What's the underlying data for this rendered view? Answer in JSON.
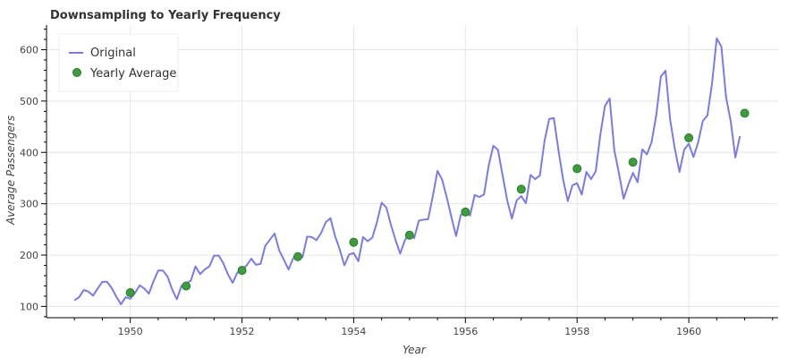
{
  "chart_data": {
    "type": "line",
    "title": "Downsampling to Yearly Frequency",
    "xlabel": "Year",
    "ylabel": "Average Passengers",
    "xlim": [
      1948.5,
      1961.6
    ],
    "ylim": [
      78,
      648
    ],
    "x_ticks": [
      1950,
      1952,
      1954,
      1956,
      1958,
      1960
    ],
    "y_ticks": [
      100,
      200,
      300,
      400,
      500,
      600
    ],
    "grid": true,
    "legend_position": "top-left",
    "series": [
      {
        "name": "Original",
        "style": "line",
        "color": "#7b7be8",
        "x_start": 1949.0,
        "x_step": 0.0833333,
        "values": [
          112,
          118,
          132,
          129,
          121,
          135,
          148,
          148,
          136,
          119,
          104,
          118,
          115,
          126,
          141,
          135,
          125,
          149,
          170,
          170,
          158,
          133,
          114,
          140,
          145,
          150,
          178,
          163,
          172,
          178,
          199,
          199,
          184,
          162,
          146,
          166,
          171,
          180,
          193,
          181,
          183,
          218,
          230,
          242,
          209,
          191,
          172,
          194,
          196,
          196,
          236,
          235,
          229,
          243,
          264,
          272,
          237,
          211,
          180,
          201,
          204,
          188,
          235,
          227,
          234,
          264,
          302,
          293,
          259,
          229,
          203,
          229,
          242,
          233,
          267,
          269,
          270,
          315,
          364,
          347,
          312,
          274,
          237,
          278,
          284,
          277,
          317,
          313,
          318,
          374,
          413,
          405,
          355,
          306,
          271,
          306,
          315,
          301,
          356,
          348,
          355,
          422,
          465,
          467,
          404,
          347,
          305,
          336,
          340,
          318,
          362,
          348,
          363,
          435,
          491,
          505,
          404,
          359,
          310,
          337,
          360,
          342,
          406,
          396,
          420,
          472,
          548,
          559,
          463,
          407,
          362,
          405,
          417,
          391,
          419,
          461,
          472,
          535,
          622,
          606,
          508,
          461,
          390,
          432
        ]
      },
      {
        "name": "Yearly Average",
        "style": "scatter",
        "color": "#3a9e3a",
        "x": [
          1950,
          1951,
          1952,
          1953,
          1954,
          1955,
          1956,
          1957,
          1958,
          1959,
          1960,
          1961
        ],
        "values": [
          126.7,
          139.7,
          170.2,
          197.0,
          225.0,
          238.9,
          284.0,
          328.3,
          368.4,
          381.0,
          428.3,
          476.2
        ]
      }
    ]
  }
}
